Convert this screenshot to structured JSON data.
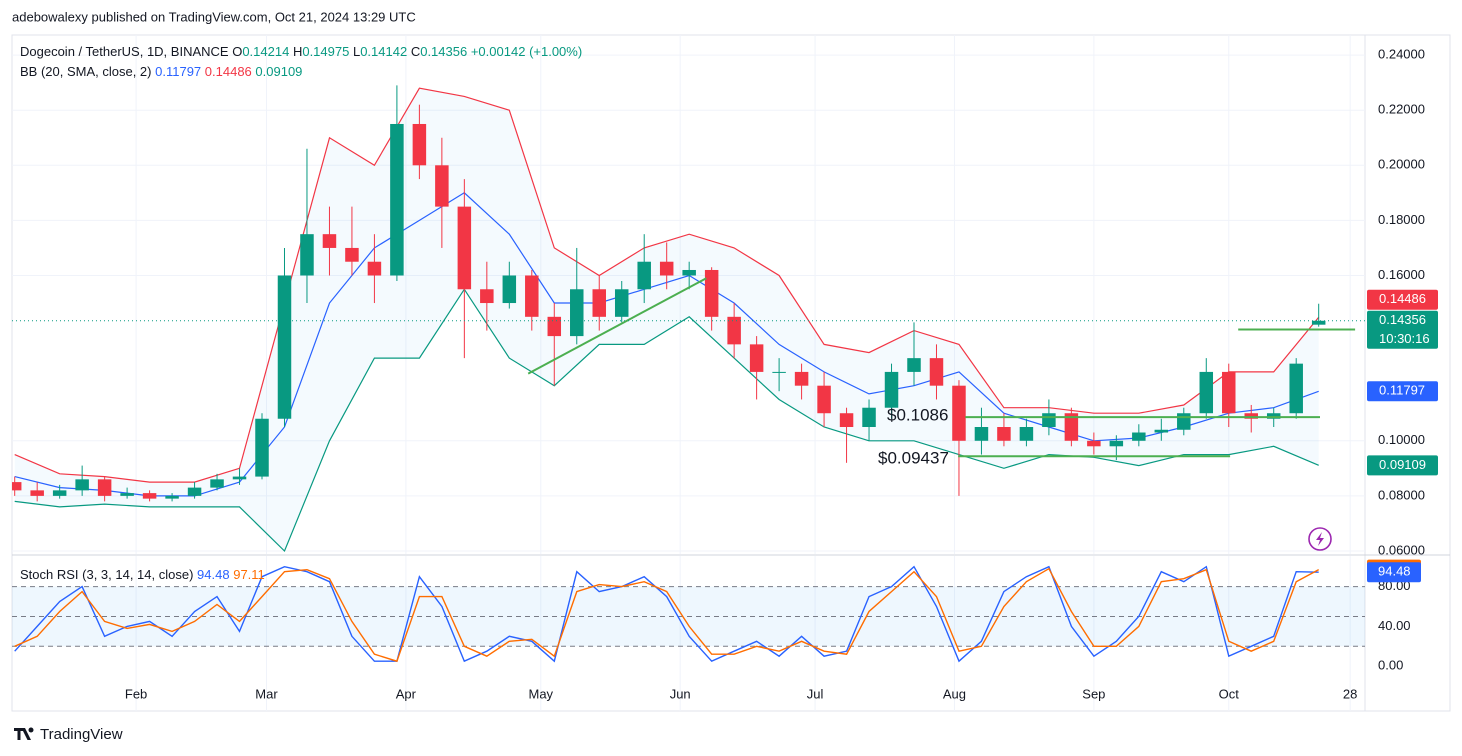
{
  "header": {
    "published": "adebowalexy published on TradingView.com, Oct 21, 2024 13:29 UTC",
    "symbol": "Dogecoin / TetherUS, 1D, BINANCE",
    "ohlc_letters": [
      "O",
      "H",
      "L",
      "C"
    ],
    "change": "+0.00142",
    "change_pct": "(+1.00%)",
    "bb_title": "BB (20, SMA, close, 2)",
    "countdown": "10:30:16",
    "brand": "TradingView"
  },
  "chart_data": [
    {
      "type": "candlestick",
      "x": [
        5,
        10,
        15,
        20,
        25,
        30,
        35,
        40,
        45,
        50,
        55,
        60,
        65,
        70,
        75,
        80,
        85,
        90,
        95,
        100,
        105,
        110,
        115,
        120,
        125,
        130,
        135,
        140,
        145,
        150,
        155,
        160,
        165,
        170,
        175,
        180,
        185,
        190,
        195,
        200,
        205,
        210,
        215,
        220,
        225,
        230,
        235,
        240,
        245,
        250,
        255,
        260,
        265,
        270,
        275,
        280,
        285,
        290,
        295
      ],
      "open": [
        0.085,
        0.082,
        0.08,
        0.082,
        0.086,
        0.08,
        0.081,
        0.079,
        0.08,
        0.083,
        0.086,
        0.087,
        0.108,
        0.16,
        0.175,
        0.17,
        0.165,
        0.16,
        0.215,
        0.2,
        0.185,
        0.155,
        0.15,
        0.16,
        0.145,
        0.138,
        0.155,
        0.145,
        0.155,
        0.165,
        0.16,
        0.162,
        0.145,
        0.135,
        0.125,
        0.125,
        0.12,
        0.11,
        0.105,
        0.112,
        0.125,
        0.13,
        0.12,
        0.1,
        0.105,
        0.1,
        0.105,
        0.11,
        0.1,
        0.098,
        0.1,
        0.103,
        0.104,
        0.11,
        0.125,
        0.11,
        0.108,
        0.11,
        0.14214
      ],
      "high": [
        0.087,
        0.085,
        0.084,
        0.091,
        0.087,
        0.083,
        0.082,
        0.081,
        0.085,
        0.088,
        0.09,
        0.11,
        0.17,
        0.206,
        0.185,
        0.185,
        0.175,
        0.229,
        0.222,
        0.21,
        0.195,
        0.165,
        0.165,
        0.162,
        0.15,
        0.17,
        0.16,
        0.158,
        0.175,
        0.172,
        0.165,
        0.163,
        0.15,
        0.138,
        0.13,
        0.128,
        0.125,
        0.112,
        0.115,
        0.128,
        0.143,
        0.135,
        0.122,
        0.112,
        0.11,
        0.108,
        0.115,
        0.112,
        0.103,
        0.102,
        0.106,
        0.108,
        0.112,
        0.13,
        0.128,
        0.113,
        0.112,
        0.13,
        0.14975
      ],
      "low": [
        0.08,
        0.078,
        0.079,
        0.08,
        0.078,
        0.079,
        0.078,
        0.078,
        0.079,
        0.082,
        0.084,
        0.086,
        0.105,
        0.15,
        0.16,
        0.16,
        0.15,
        0.158,
        0.195,
        0.17,
        0.13,
        0.14,
        0.148,
        0.14,
        0.12,
        0.135,
        0.14,
        0.143,
        0.15,
        0.155,
        0.155,
        0.14,
        0.13,
        0.115,
        0.118,
        0.115,
        0.105,
        0.092,
        0.1,
        0.108,
        0.12,
        0.115,
        0.08,
        0.095,
        0.098,
        0.098,
        0.102,
        0.098,
        0.095,
        0.093,
        0.098,
        0.1,
        0.102,
        0.108,
        0.105,
        0.103,
        0.105,
        0.108,
        0.14142
      ],
      "close": [
        0.082,
        0.08,
        0.082,
        0.086,
        0.08,
        0.081,
        0.079,
        0.08,
        0.083,
        0.086,
        0.087,
        0.108,
        0.16,
        0.175,
        0.17,
        0.165,
        0.16,
        0.215,
        0.2,
        0.185,
        0.155,
        0.15,
        0.16,
        0.145,
        0.138,
        0.155,
        0.145,
        0.155,
        0.165,
        0.16,
        0.162,
        0.145,
        0.135,
        0.125,
        0.125,
        0.12,
        0.11,
        0.105,
        0.112,
        0.125,
        0.13,
        0.12,
        0.1,
        0.105,
        0.1,
        0.105,
        0.11,
        0.1,
        0.098,
        0.1,
        0.103,
        0.104,
        0.11,
        0.125,
        0.11,
        0.108,
        0.11,
        0.128,
        0.14356
      ],
      "up_color": "#089981",
      "down_color": "#f23645",
      "bands": {
        "x": [
          5,
          15,
          25,
          35,
          45,
          55,
          65,
          75,
          85,
          95,
          105,
          115,
          125,
          135,
          145,
          155,
          165,
          175,
          185,
          195,
          205,
          215,
          225,
          235,
          245,
          255,
          265,
          275,
          285,
          295
        ],
        "basis": [
          0.087,
          0.083,
          0.082,
          0.08,
          0.08,
          0.085,
          0.105,
          0.15,
          0.17,
          0.18,
          0.19,
          0.175,
          0.15,
          0.15,
          0.155,
          0.16,
          0.15,
          0.135,
          0.125,
          0.117,
          0.12,
          0.125,
          0.11,
          0.105,
          0.1,
          0.101,
          0.105,
          0.11,
          0.112,
          0.11797
        ],
        "upper": [
          0.095,
          0.088,
          0.087,
          0.085,
          0.085,
          0.09,
          0.15,
          0.21,
          0.2,
          0.228,
          0.225,
          0.22,
          0.17,
          0.16,
          0.17,
          0.175,
          0.17,
          0.16,
          0.135,
          0.132,
          0.14,
          0.135,
          0.112,
          0.112,
          0.11,
          0.11,
          0.113,
          0.125,
          0.125,
          0.14486
        ],
        "lower": [
          0.078,
          0.076,
          0.077,
          0.076,
          0.076,
          0.076,
          0.06,
          0.1,
          0.13,
          0.13,
          0.155,
          0.13,
          0.12,
          0.135,
          0.135,
          0.145,
          0.13,
          0.115,
          0.105,
          0.1,
          0.1,
          0.095,
          0.09,
          0.095,
          0.094,
          0.091,
          0.095,
          0.095,
          0.098,
          0.09109
        ],
        "basis_color": "#2962ff",
        "upper_color": "#f23645",
        "lower_color": "#089981",
        "fill_color": "#2196f3"
      },
      "lines": [
        {
          "x": [
            119.2,
            158.8
          ],
          "y": [
            0.1244,
            0.159
          ]
        },
        {
          "x": [
            216.4,
            295.3
          ],
          "y": [
            0.1086,
            0.1086
          ]
        },
        {
          "x": [
            214.8,
            275.3
          ],
          "y": [
            0.09437,
            0.09437
          ]
        },
        {
          "x": [
            277.1,
            303.1
          ],
          "y": [
            0.1404,
            0.1404
          ]
        }
      ],
      "line_color": "#4caf50",
      "annotations": [
        "$0.1086",
        "$0.09437"
      ],
      "xlim": [
        4.4,
        305.3
      ],
      "ylim": [
        0.0589,
        0.2473
      ],
      "yticks": [
        {
          "value": 0.24,
          "label": "0.24000"
        },
        {
          "value": 0.22,
          "label": "0.22000"
        },
        {
          "value": 0.2,
          "label": "0.20000"
        },
        {
          "value": 0.18,
          "label": "0.18000"
        },
        {
          "value": 0.16,
          "label": "0.16000"
        },
        {
          "value": 0.1,
          "label": "0.10000"
        },
        {
          "value": 0.08,
          "label": "0.08000"
        },
        {
          "value": 0.06,
          "label": "0.06000"
        }
      ],
      "grid": true
    },
    {
      "type": "line",
      "title": "Stoch RSI (3, 3, 14, 14, close)",
      "x": [
        5,
        10,
        15,
        20,
        25,
        30,
        35,
        40,
        45,
        50,
        55,
        60,
        65,
        70,
        75,
        80,
        85,
        90,
        95,
        100,
        105,
        110,
        115,
        120,
        125,
        130,
        135,
        140,
        145,
        150,
        155,
        160,
        165,
        170,
        175,
        180,
        185,
        190,
        195,
        200,
        205,
        210,
        215,
        220,
        225,
        230,
        235,
        240,
        245,
        250,
        255,
        260,
        265,
        270,
        275,
        280,
        285,
        290,
        295
      ],
      "series": [
        {
          "color": "#2962ff",
          "values": [
            15,
            40,
            65,
            80,
            30,
            40,
            45,
            30,
            55,
            70,
            35,
            90,
            100,
            95,
            85,
            30,
            5,
            5,
            90,
            60,
            5,
            15,
            30,
            25,
            5,
            95,
            75,
            80,
            90,
            70,
            30,
            5,
            15,
            25,
            10,
            30,
            10,
            15,
            70,
            80,
            100,
            60,
            5,
            25,
            75,
            90,
            100,
            40,
            10,
            25,
            50,
            95,
            85,
            100,
            10,
            20,
            30,
            95,
            94.48
          ]
        },
        {
          "color": "#ff6d00",
          "values": [
            20,
            30,
            55,
            75,
            45,
            38,
            42,
            35,
            45,
            62,
            45,
            70,
            95,
            97,
            88,
            45,
            12,
            5,
            70,
            70,
            20,
            10,
            25,
            27,
            10,
            75,
            82,
            80,
            85,
            75,
            40,
            12,
            12,
            20,
            15,
            25,
            15,
            12,
            55,
            75,
            95,
            70,
            15,
            20,
            60,
            85,
            98,
            55,
            20,
            20,
            40,
            85,
            88,
            97,
            25,
            15,
            25,
            85,
            97.11
          ]
        }
      ],
      "levels": [
        80,
        50,
        20
      ],
      "band_color": "#2196f3",
      "xlim": [
        4.4,
        305.3
      ],
      "ylim": [
        -45.1,
        110.8
      ],
      "yticks": [
        {
          "value": 80,
          "label": "80.00"
        },
        {
          "value": 40,
          "label": "40.00"
        },
        {
          "value": 0,
          "label": "0.00"
        }
      ],
      "xticks": [
        {
          "value": 32,
          "label": "Feb"
        },
        {
          "value": 61,
          "label": "Mar"
        },
        {
          "value": 92,
          "label": "Apr"
        },
        {
          "value": 122,
          "label": "May"
        },
        {
          "value": 153,
          "label": "Jun"
        },
        {
          "value": 183,
          "label": "Jul"
        },
        {
          "value": 214,
          "label": "Aug"
        },
        {
          "value": 245,
          "label": "Sep"
        },
        {
          "value": 275,
          "label": "Oct"
        },
        {
          "value": 302,
          "label": "28"
        }
      ]
    }
  ]
}
